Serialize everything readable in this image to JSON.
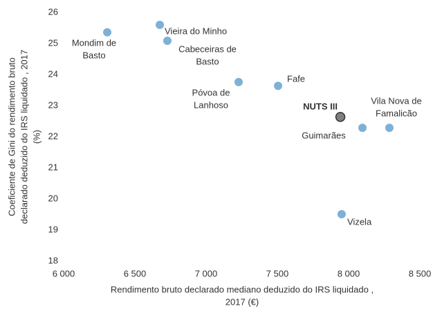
{
  "chart_data": {
    "type": "scatter",
    "x_label": [
      "Rendimento bruto declarado mediano deduzido do IRS liquidado ,",
      "2017 (€)"
    ],
    "y_label": [
      "Coeficiente de Gini do rendimento bruto",
      "declarado deduzido do IRS liquidado , 2017",
      "(%)"
    ],
    "xlim": [
      6000,
      8500
    ],
    "xticks": [
      {
        "value": 6000,
        "label": "6 000"
      },
      {
        "value": 6500,
        "label": "6 500"
      },
      {
        "value": 7000,
        "label": "7 000"
      },
      {
        "value": 7500,
        "label": "7 500"
      },
      {
        "value": 8000,
        "label": "8 000"
      },
      {
        "value": 8500,
        "label": "8 500"
      }
    ],
    "ylim": [
      18,
      26
    ],
    "yticks": [
      18,
      19,
      20,
      21,
      22,
      23,
      24,
      25,
      26
    ],
    "points": [
      {
        "label": [
          "Mondim de",
          "Basto"
        ],
        "x": 6306,
        "y": 25.36,
        "color": "#7fb0d6"
      },
      {
        "label": [
          "Vieira do Minho"
        ],
        "x": 6675,
        "y": 25.6,
        "color": "#7fb0d6"
      },
      {
        "label": [
          "Cabeceiras de",
          "Basto"
        ],
        "x": 6728,
        "y": 25.09,
        "color": "#7fb0d6"
      },
      {
        "label": [
          "Póvoa de",
          "Lanhoso"
        ],
        "x": 7228,
        "y": 23.76,
        "color": "#7fb0d6"
      },
      {
        "label": [
          "Fafe"
        ],
        "x": 7505,
        "y": 23.64,
        "color": "#7fb0d6"
      },
      {
        "label": [
          "NUTS III"
        ],
        "x": 7942,
        "y": 22.64,
        "color": "#7f7f7f"
      },
      {
        "label": [
          "Guimarães"
        ],
        "x": 8097,
        "y": 22.29,
        "color": "#7fb0d6"
      },
      {
        "label": [
          "Vila Nova de",
          "Famalicão"
        ],
        "x": 8286,
        "y": 22.29,
        "color": "#7fb0d6"
      },
      {
        "label": [
          "Vizela"
        ],
        "x": 7951,
        "y": 19.51,
        "color": "#7fb0d6"
      }
    ]
  }
}
